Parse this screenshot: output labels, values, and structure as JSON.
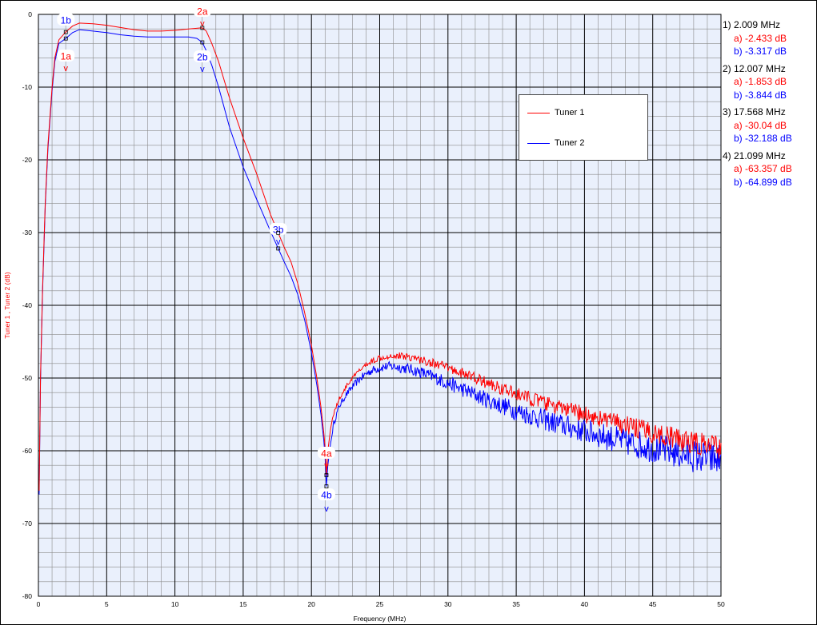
{
  "colors": {
    "series_a": "#ff0000",
    "series_b": "#0000ff",
    "plot_background": "#eaf0fc",
    "grid_major": "#000000",
    "grid_minor": "#8a8a8a",
    "marker_badge_fill": "#ffffff"
  },
  "chart_data": {
    "type": "line",
    "title": "",
    "xlabel": "Frequency (MHz)",
    "ylabel": "Tuner 1 , Tuner 2 (dB)",
    "xlim": [
      0,
      50
    ],
    "ylim": [
      -80,
      0
    ],
    "x_major_ticks": [
      0,
      5,
      10,
      15,
      20,
      25,
      30,
      35,
      40,
      45,
      50
    ],
    "y_major_ticks": [
      0,
      -10,
      -20,
      -30,
      -40,
      -50,
      -60,
      -70,
      -80
    ],
    "x_tick_labels": [
      "0",
      "5",
      "10",
      "15",
      "20",
      "25",
      "30",
      "35",
      "40",
      "45",
      "50"
    ],
    "y_tick_labels": [
      "0",
      "-10",
      "-20",
      "-30",
      "-40",
      "-50",
      "-60",
      "-70",
      "-80"
    ],
    "grid": true,
    "legend_position": "upper-right",
    "series": [
      {
        "name": "Tuner 1",
        "color": "#ff0000",
        "x": [
          0.05,
          0.15,
          0.3,
          0.5,
          0.7,
          1.0,
          1.2,
          1.5,
          2.0,
          2.5,
          3.0,
          4.0,
          5.0,
          6.0,
          7.0,
          8.0,
          9.0,
          10.0,
          11.0,
          12.0,
          12.3,
          12.7,
          13.2,
          14.0,
          15.0,
          16.0,
          17.0,
          17.568,
          18.0,
          18.5,
          19.0,
          19.5,
          20.0,
          20.4,
          20.7,
          20.9,
          21.0,
          21.1,
          21.2,
          21.4,
          21.6,
          22.0,
          22.5,
          23.0,
          23.5,
          24.0,
          24.5,
          25.0,
          25.5,
          26.0,
          27.0,
          28.0,
          29.0,
          30.0,
          31.0,
          32.0,
          33.0,
          34.0,
          35.0,
          36.0,
          37.0,
          38.0,
          39.0,
          40.0,
          41.0,
          42.0,
          43.0,
          44.0,
          45.0,
          46.0,
          47.0,
          48.0,
          49.0,
          50.0
        ],
        "y": [
          -65.5,
          -50.0,
          -38.0,
          -26.0,
          -18.0,
          -10.0,
          -6.0,
          -3.5,
          -2.43,
          -1.6,
          -1.2,
          -1.3,
          -1.5,
          -1.8,
          -2.1,
          -2.3,
          -2.3,
          -2.2,
          -2.0,
          -1.85,
          -2.3,
          -4.0,
          -6.5,
          -11.5,
          -17.0,
          -22.0,
          -27.5,
          -30.04,
          -32.0,
          -34.0,
          -37.0,
          -41.0,
          -45.5,
          -50.0,
          -54.0,
          -57.5,
          -59.5,
          -63.36,
          -60.0,
          -57.0,
          -55.0,
          -53.0,
          -51.3,
          -50.0,
          -49.0,
          -48.2,
          -47.6,
          -47.2,
          -47.0,
          -46.9,
          -47.0,
          -47.5,
          -48.0,
          -48.6,
          -49.3,
          -50.0,
          -50.8,
          -51.5,
          -52.2,
          -52.8,
          -53.4,
          -54.0,
          -54.5,
          -55.0,
          -55.5,
          -56.0,
          -56.5,
          -57.0,
          -57.5,
          -58.0,
          -58.5,
          -58.9,
          -59.3,
          -59.6
        ]
      },
      {
        "name": "Tuner 2",
        "color": "#0000ff",
        "x": [
          0.05,
          0.15,
          0.3,
          0.5,
          0.7,
          1.0,
          1.2,
          1.5,
          2.0,
          2.5,
          3.0,
          4.0,
          5.0,
          6.0,
          7.0,
          8.0,
          9.0,
          10.0,
          11.0,
          11.6,
          12.0,
          12.3,
          12.7,
          13.2,
          14.0,
          15.0,
          16.0,
          17.0,
          17.568,
          18.0,
          18.5,
          19.0,
          19.5,
          20.0,
          20.4,
          20.7,
          20.9,
          21.0,
          21.099,
          21.2,
          21.4,
          21.6,
          22.0,
          22.5,
          23.0,
          23.5,
          24.0,
          24.5,
          25.0,
          25.5,
          26.0,
          27.0,
          28.0,
          29.0,
          30.0,
          31.0,
          32.0,
          33.0,
          34.0,
          35.0,
          36.0,
          37.0,
          38.0,
          39.0,
          40.0,
          41.0,
          42.0,
          43.0,
          44.0,
          45.0,
          46.0,
          47.0,
          48.0,
          49.0,
          50.0
        ],
        "y": [
          -66.0,
          -50.5,
          -38.5,
          -26.5,
          -18.5,
          -10.5,
          -6.5,
          -4.0,
          -3.32,
          -2.5,
          -2.1,
          -2.3,
          -2.5,
          -2.8,
          -3.0,
          -3.1,
          -3.1,
          -3.1,
          -3.1,
          -3.3,
          -3.84,
          -5.0,
          -7.0,
          -10.0,
          -15.5,
          -21.0,
          -25.5,
          -29.8,
          -32.19,
          -34.0,
          -36.0,
          -38.5,
          -42.0,
          -46.5,
          -51.0,
          -55.0,
          -58.5,
          -61.0,
          -64.9,
          -62.0,
          -59.0,
          -56.5,
          -54.0,
          -52.4,
          -51.2,
          -50.2,
          -49.4,
          -48.9,
          -48.6,
          -48.4,
          -48.4,
          -48.7,
          -49.2,
          -49.9,
          -50.7,
          -51.5,
          -52.3,
          -53.1,
          -53.8,
          -54.5,
          -55.1,
          -55.7,
          -56.3,
          -56.8,
          -57.3,
          -57.8,
          -58.3,
          -58.8,
          -59.2,
          -59.6,
          -60.0,
          -60.4,
          -60.7,
          -61.0,
          -61.3
        ]
      }
    ],
    "markers": [
      {
        "id": "1",
        "freq": 2.009,
        "a_db": -2.433,
        "b_db": -3.317,
        "label_a": "1a",
        "label_b": "1b"
      },
      {
        "id": "2",
        "freq": 12.007,
        "a_db": -1.853,
        "b_db": -3.844,
        "label_a": "2a",
        "label_b": "2b"
      },
      {
        "id": "3",
        "freq": 17.568,
        "a_db": -30.04,
        "b_db": -32.188,
        "label_a": "3a",
        "label_b": "3b"
      },
      {
        "id": "4",
        "freq": 21.099,
        "a_db": -63.357,
        "b_db": -64.899,
        "label_a": "4a",
        "label_b": "4b"
      }
    ],
    "marker_arrow": "v"
  },
  "readout": [
    {
      "freq": "1) 2.009 MHz",
      "a": "a) -2.433 dB",
      "b": "b) -3.317 dB"
    },
    {
      "freq": "2) 12.007 MHz",
      "a": "a) -1.853 dB",
      "b": "b) -3.844 dB"
    },
    {
      "freq": "3) 17.568 MHz",
      "a": "a) -30.04 dB",
      "b": "b) -32.188 dB"
    },
    {
      "freq": "4) 21.099 MHz",
      "a": "a) -63.357 dB",
      "b": "b) -64.899 dB"
    }
  ],
  "legend": {
    "series_a_label": "Tuner 1",
    "series_b_label": "Tuner 2"
  }
}
